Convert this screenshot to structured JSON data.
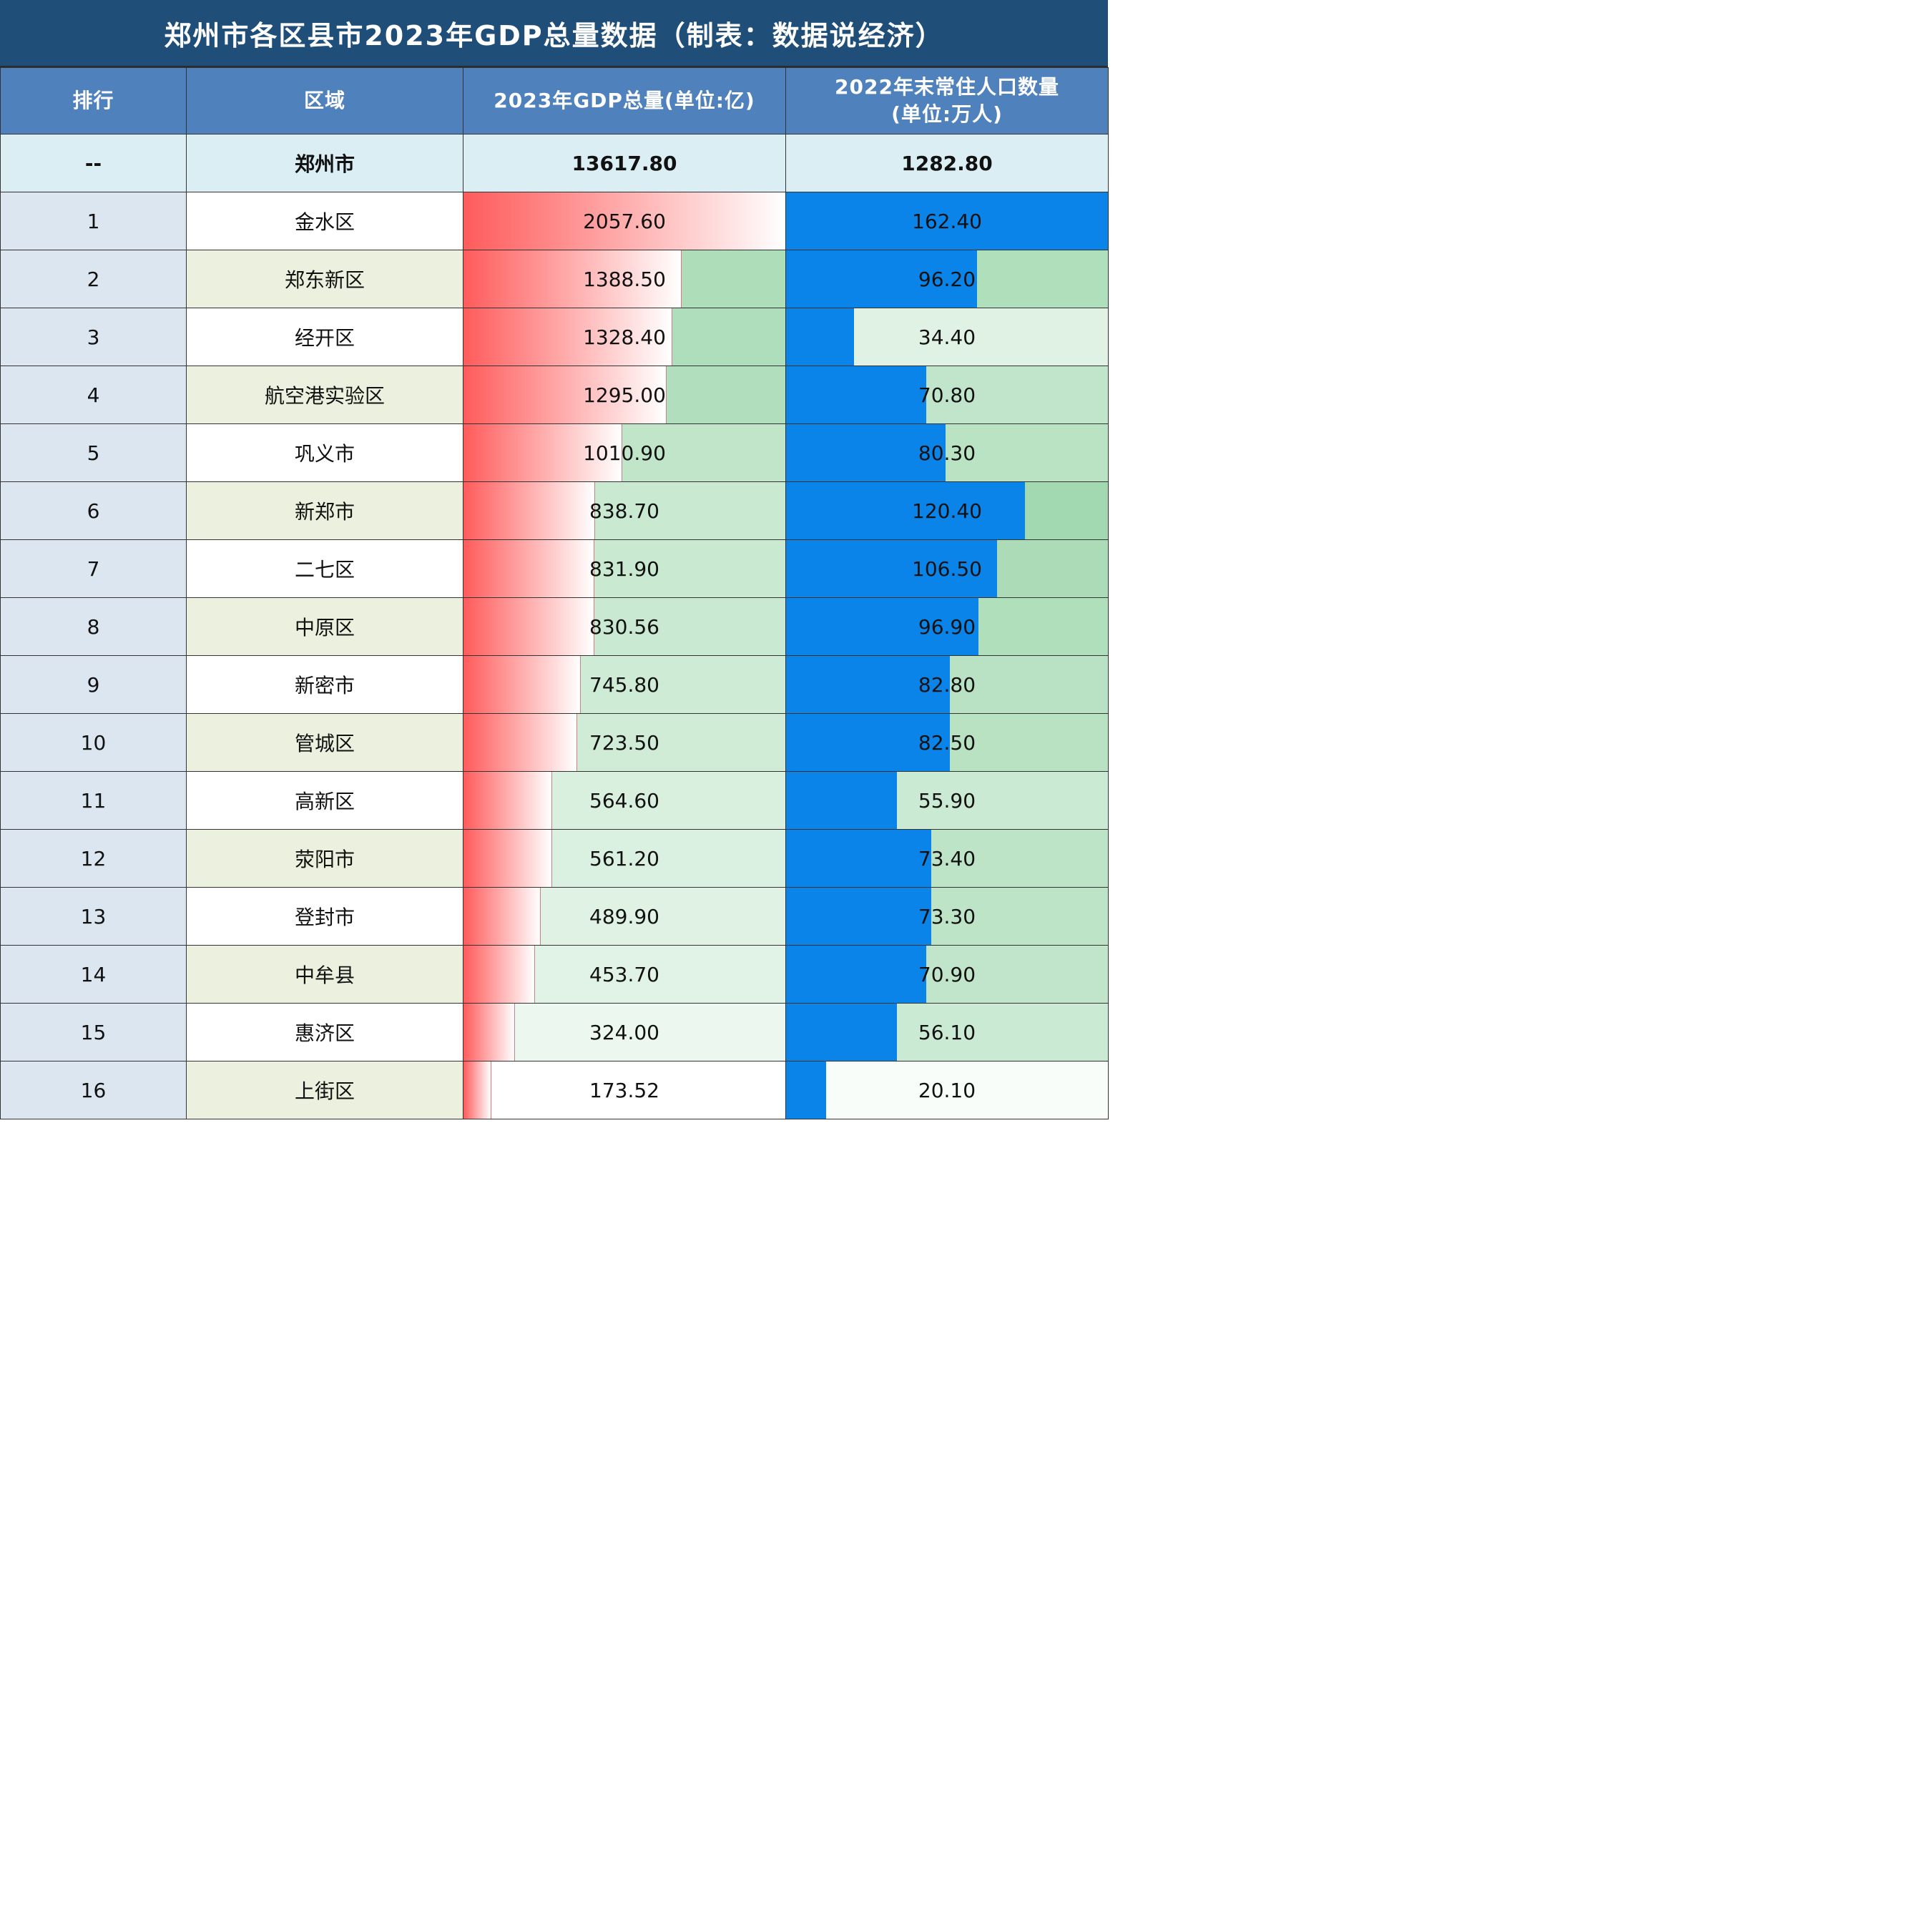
{
  "title": "郑州市各区县市2023年GDP总量数据（制表：数据说经济）",
  "headers": {
    "rank": "排行",
    "region": "区域",
    "gdp": "2023年GDP总量(单位:亿)",
    "pop_line1": "2022年末常住人口数量",
    "pop_line2": "(单位:万人)"
  },
  "total": {
    "rank": "--",
    "region": "郑州市",
    "gdp": "13617.80",
    "pop": "1282.80"
  },
  "colors": {
    "gdp_bar_start": "#ff5b5b",
    "gdp_bar_end": "#ffffff",
    "pop_bar": "#0a84e8",
    "bg_high": "#8fd1a0",
    "bg_low": "#ffffff"
  },
  "chart_data": {
    "type": "table",
    "columns": [
      "排行",
      "区域",
      "2023年GDP总量(单位:亿)",
      "2022年末常住人口数量(单位:万人)"
    ],
    "rows": [
      {
        "rank": "1",
        "region": "金水区",
        "gdp": "2057.60",
        "pop": "162.40"
      },
      {
        "rank": "2",
        "region": "郑东新区",
        "gdp": "1388.50",
        "pop": "96.20"
      },
      {
        "rank": "3",
        "region": "经开区",
        "gdp": "1328.40",
        "pop": "34.40"
      },
      {
        "rank": "4",
        "region": "航空港实验区",
        "gdp": "1295.00",
        "pop": "70.80"
      },
      {
        "rank": "5",
        "region": "巩义市",
        "gdp": "1010.90",
        "pop": "80.30"
      },
      {
        "rank": "6",
        "region": "新郑市",
        "gdp": "838.70",
        "pop": "120.40"
      },
      {
        "rank": "7",
        "region": "二七区",
        "gdp": "831.90",
        "pop": "106.50"
      },
      {
        "rank": "8",
        "region": "中原区",
        "gdp": "830.56",
        "pop": "96.90"
      },
      {
        "rank": "9",
        "region": "新密市",
        "gdp": "745.80",
        "pop": "82.80"
      },
      {
        "rank": "10",
        "region": "管城区",
        "gdp": "723.50",
        "pop": "82.50"
      },
      {
        "rank": "11",
        "region": "高新区",
        "gdp": "564.60",
        "pop": "55.90"
      },
      {
        "rank": "12",
        "region": "荥阳市",
        "gdp": "561.20",
        "pop": "73.40"
      },
      {
        "rank": "13",
        "region": "登封市",
        "gdp": "489.90",
        "pop": "73.30"
      },
      {
        "rank": "14",
        "region": "中牟县",
        "gdp": "453.70",
        "pop": "70.90"
      },
      {
        "rank": "15",
        "region": "惠济区",
        "gdp": "324.00",
        "pop": "56.10"
      },
      {
        "rank": "16",
        "region": "上街区",
        "gdp": "173.52",
        "pop": "20.10"
      }
    ]
  }
}
